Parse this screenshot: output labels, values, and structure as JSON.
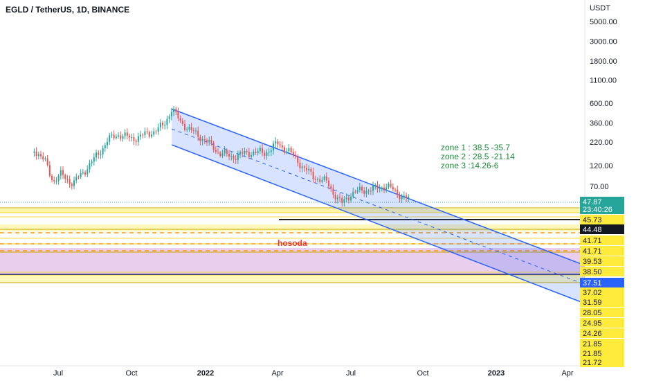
{
  "header": {
    "symbol": "EGLD / TetherUS, 1D, BINANCE"
  },
  "axis": {
    "unit": "USDT"
  },
  "annotations": {
    "zones": [
      "zone 1 : 38.5 -35.7",
      "zone 2 : 28.5 -21.14",
      "zone 3 :14.26-6"
    ],
    "hosoda": "hosoda"
  },
  "colors": {
    "channel": "#2962ff",
    "channel_fill": "#2962ff",
    "up": "#26a69a",
    "down": "#ef5350",
    "highlight_yellow": "#ffeb3b",
    "zone_pink": "#e1bee7",
    "dashed": "#ff9800",
    "note": "#1b8a3a",
    "hosoda": "#e53935"
  },
  "chart_data": {
    "type": "candlestick",
    "title": "EGLD / TetherUS, 1D, BINANCE",
    "ylabel": "USDT",
    "x_ticks": [
      "Jul",
      "Oct",
      "2022",
      "Apr",
      "Jul",
      "Oct",
      "2023",
      "Apr"
    ],
    "y_ticks_upper": [
      "5000.00",
      "3000.00",
      "1800.00",
      "1100.00",
      "600.00",
      "360.00",
      "220.00",
      "120.00",
      "70.00"
    ],
    "price_labels": [
      {
        "text": "47.87",
        "style": "current"
      },
      {
        "text": "23:40:26",
        "style": "current"
      },
      {
        "text": "45.73",
        "style": "yellow"
      },
      {
        "text": "44.48",
        "style": "dark"
      },
      {
        "text": "41.71",
        "style": "yellow"
      },
      {
        "text": "41.71",
        "style": "yellow"
      },
      {
        "text": "39.53",
        "style": "yellow"
      },
      {
        "text": "38.50",
        "style": "yellow"
      },
      {
        "text": "37.51",
        "style": "blue"
      },
      {
        "text": "37.02",
        "style": "yellow"
      },
      {
        "text": "31.59",
        "style": "yellow"
      },
      {
        "text": "28.05",
        "style": "yellow"
      },
      {
        "text": "24.95",
        "style": "yellow"
      },
      {
        "text": "24.26",
        "style": "yellow"
      },
      {
        "text": "21.85",
        "style": "yellow"
      },
      {
        "text": "21.85",
        "style": "yellow"
      },
      {
        "text": "21.72",
        "style": "yellow"
      }
    ],
    "price_path": [
      {
        "x": "2021-06-01",
        "y": 185
      },
      {
        "x": "2021-06-15",
        "y": 130
      },
      {
        "x": "2021-06-25",
        "y": 80
      },
      {
        "x": "2021-07-05",
        "y": 95
      },
      {
        "x": "2021-07-20",
        "y": 75
      },
      {
        "x": "2021-08-05",
        "y": 110
      },
      {
        "x": "2021-08-20",
        "y": 160
      },
      {
        "x": "2021-09-01",
        "y": 230
      },
      {
        "x": "2021-09-15",
        "y": 270
      },
      {
        "x": "2021-10-01",
        "y": 240
      },
      {
        "x": "2021-10-15",
        "y": 260
      },
      {
        "x": "2021-11-01",
        "y": 300
      },
      {
        "x": "2021-11-10",
        "y": 340
      },
      {
        "x": "2021-11-20",
        "y": 520
      },
      {
        "x": "2021-12-01",
        "y": 370
      },
      {
        "x": "2021-12-15",
        "y": 290
      },
      {
        "x": "2022-01-01",
        "y": 230
      },
      {
        "x": "2022-01-15",
        "y": 175
      },
      {
        "x": "2022-02-01",
        "y": 150
      },
      {
        "x": "2022-02-15",
        "y": 160
      },
      {
        "x": "2022-03-01",
        "y": 170
      },
      {
        "x": "2022-03-15",
        "y": 165
      },
      {
        "x": "2022-04-01",
        "y": 210
      },
      {
        "x": "2022-04-15",
        "y": 175
      },
      {
        "x": "2022-05-01",
        "y": 120
      },
      {
        "x": "2022-05-15",
        "y": 90
      },
      {
        "x": "2022-06-01",
        "y": 78
      },
      {
        "x": "2022-06-15",
        "y": 50
      },
      {
        "x": "2022-06-20",
        "y": 45
      },
      {
        "x": "2022-07-01",
        "y": 58
      },
      {
        "x": "2022-07-15",
        "y": 63
      },
      {
        "x": "2022-08-01",
        "y": 66
      },
      {
        "x": "2022-08-15",
        "y": 71
      },
      {
        "x": "2022-09-01",
        "y": 57
      },
      {
        "x": "2022-09-15",
        "y": 48
      }
    ],
    "channel": {
      "upper": [
        {
          "x": "2021-11-20",
          "y": 520
        },
        {
          "x": "2023-04-05",
          "y": 32
        }
      ],
      "lower": [
        {
          "x": "2021-11-20",
          "y": 205
        },
        {
          "x": "2023-04-05",
          "y": 19
        }
      ]
    }
  }
}
